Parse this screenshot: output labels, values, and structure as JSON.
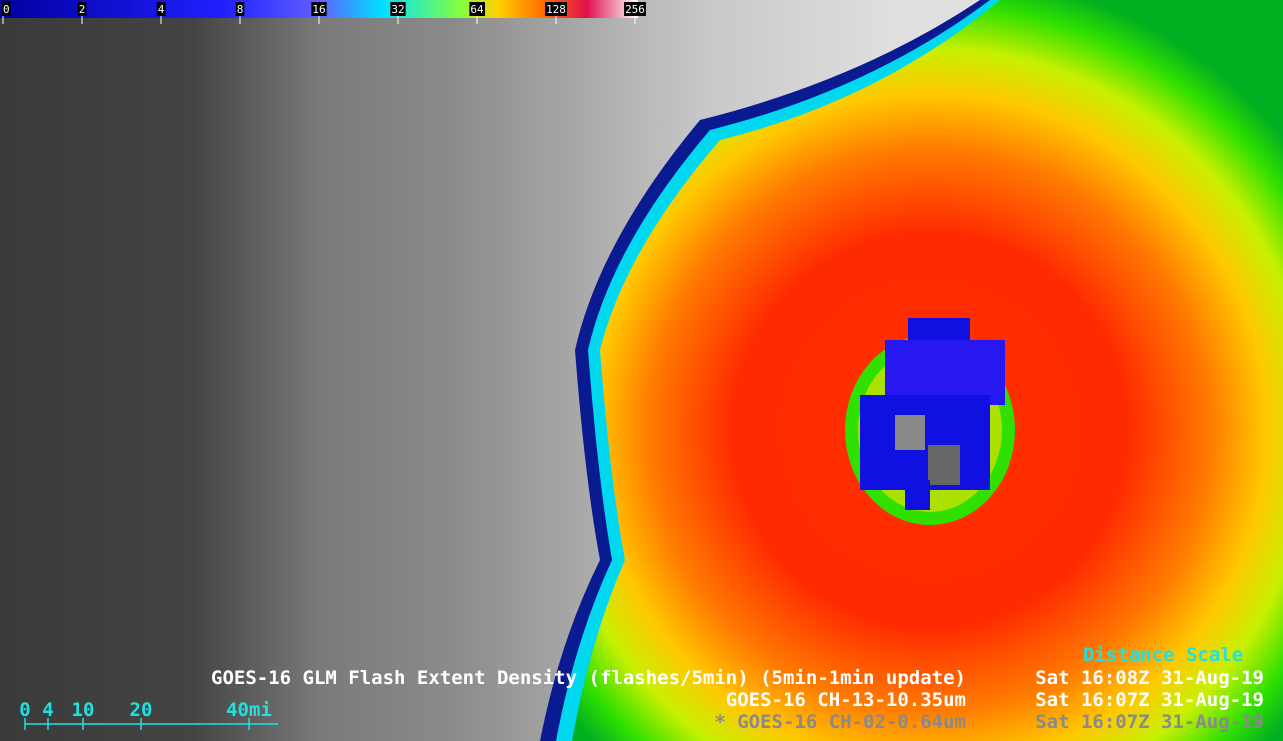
{
  "colorbar": {
    "labels": [
      "0",
      "2",
      "4",
      "8",
      "16",
      "32",
      "64",
      "128",
      "256"
    ]
  },
  "distance_scale": {
    "title": "Distance Scale",
    "labels": [
      "0",
      "4",
      "10",
      "20",
      "40mi"
    ]
  },
  "layers": [
    {
      "product": "GOES-16 GLM Flash Extent Density (flashes/5min) (5min-1min update)",
      "time": "Sat 16:08Z 31-Aug-19"
    },
    {
      "product": "GOES-16 CH-13-10.35um",
      "time": "Sat 16:07Z 31-Aug-19"
    },
    {
      "product": "* GOES-16 CH-02-0.64um",
      "time": "Sat 16:07Z 31-Aug-19"
    }
  ]
}
